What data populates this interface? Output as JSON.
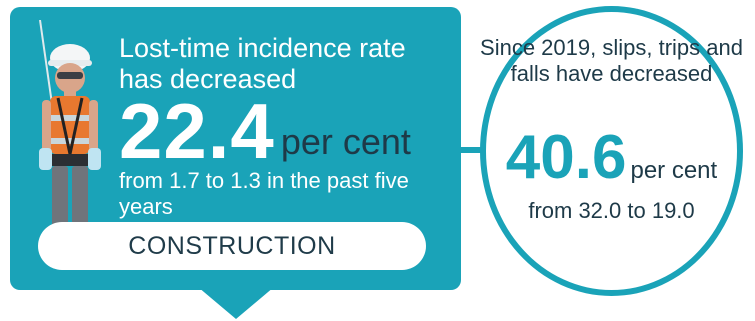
{
  "construction": {
    "headline": "Lost-time incidence rate has decreased",
    "value": "22.4",
    "unit": "per cent",
    "detail": "from 1.7 to 1.3 in the past five years",
    "sector_label": "CONSTRUCTION"
  },
  "falls": {
    "headline": "Since 2019, slips, trips and falls have decreased",
    "value": "40.6",
    "unit": "per cent",
    "detail": "from 32.0 to 19.0"
  },
  "icons": {
    "worker": "construction-worker-icon"
  },
  "colors": {
    "teal": "#1aa3b8",
    "navy": "#1e3a48",
    "white": "#ffffff"
  }
}
